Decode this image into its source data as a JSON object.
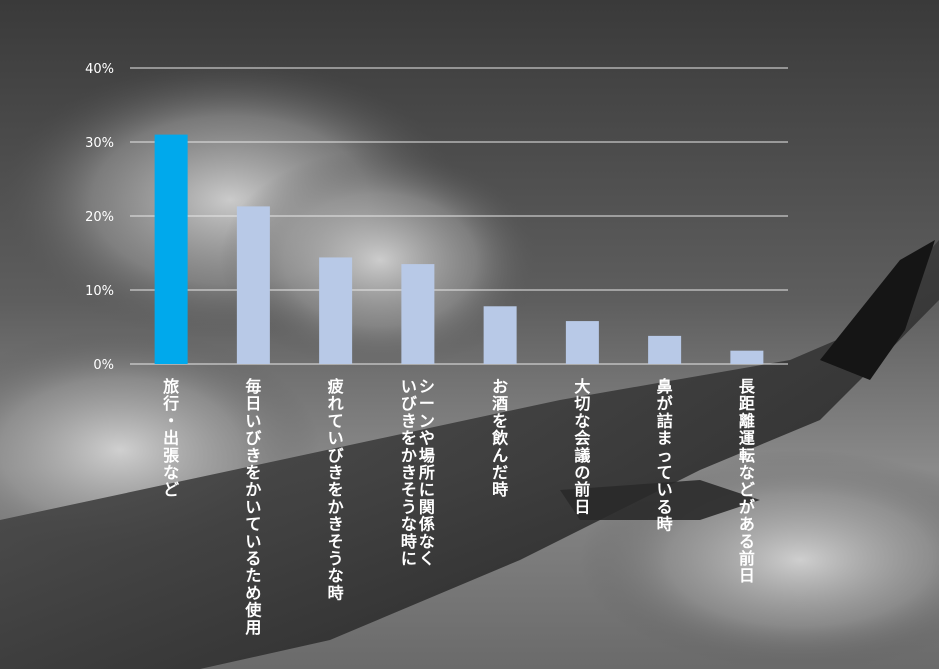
{
  "colors": {
    "highlight_bar": "#00A9EC",
    "bar": "#B8C9E7",
    "grid": "#E8E8E8",
    "tick_text": "#FFFFFF",
    "category_text": "#FFFFFF"
  },
  "chart_data": {
    "type": "bar",
    "title": "",
    "xlabel": "",
    "ylabel": "",
    "ylim": [
      0,
      40
    ],
    "yticks": [
      "0%",
      "10%",
      "20%",
      "30%",
      "40%"
    ],
    "ytick_values": [
      0,
      10,
      20,
      30,
      40
    ],
    "grid": true,
    "legend": "none",
    "highlight_index": 0,
    "categories": [
      "旅行・出張など",
      "毎日いびきをかいているため使用",
      "疲れていびきをかきそうな時",
      "シーンや場所に関係なく\nいびきをかきそうな時に",
      "お酒を飲んだ時",
      "大切な会議の前日",
      "鼻が詰まっている時",
      "長距離運転などがある前日"
    ],
    "values": [
      31.0,
      21.3,
      14.4,
      13.5,
      7.8,
      5.8,
      3.8,
      1.8
    ]
  }
}
